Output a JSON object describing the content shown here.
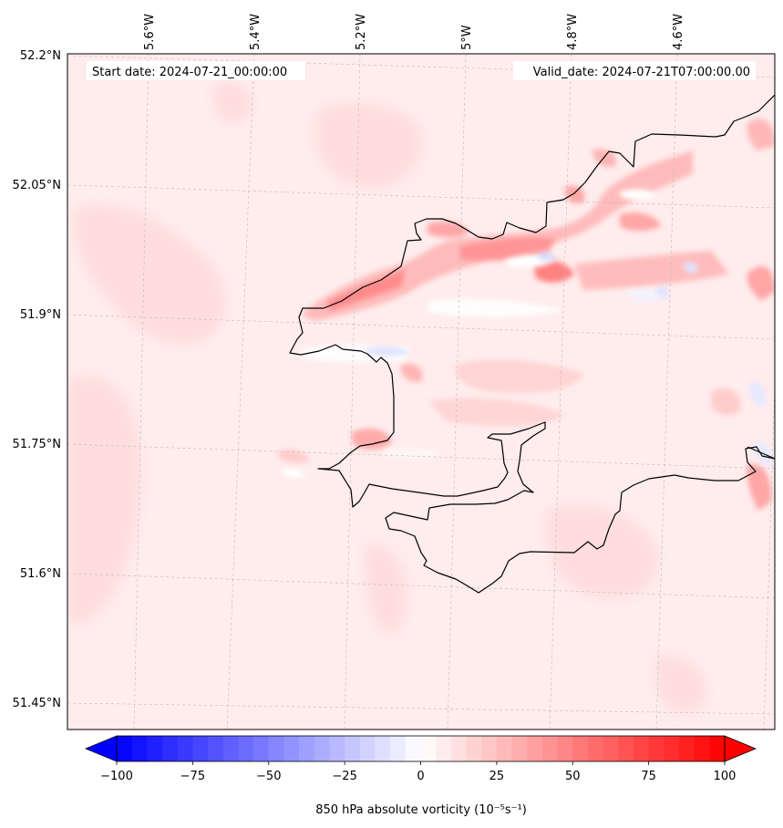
{
  "header": {
    "start_date": "Start date: 2024-07-21_00:00:00",
    "valid_date": "Valid_date: 2024-07-21T07:00:00.00"
  },
  "axes": {
    "lon_labels": [
      "5.6°W",
      "5.4°W",
      "5.2°W",
      "5°W",
      "4.8°W",
      "4.6°W"
    ],
    "lat_labels": [
      "52.2°N",
      "52.05°N",
      "51.9°N",
      "51.75°N",
      "51.6°N",
      "51.45°N"
    ],
    "gridlines": true
  },
  "colorbar": {
    "min": -100,
    "max": 100,
    "ticks": [
      "−100",
      "−75",
      "−50",
      "−25",
      "0",
      "25",
      "50",
      "75",
      "100"
    ],
    "tick_values": [
      -100,
      -75,
      -50,
      -25,
      0,
      25,
      50,
      75,
      100
    ],
    "step": 5,
    "extend": "both",
    "colormap": "bwr",
    "label": "850 hPa absolute vorticity (10⁻⁵s⁻¹)"
  },
  "colors": {
    "background_field": "#ffe9e9",
    "coastline": "#000000",
    "gridline": "#bbbbbb"
  }
}
